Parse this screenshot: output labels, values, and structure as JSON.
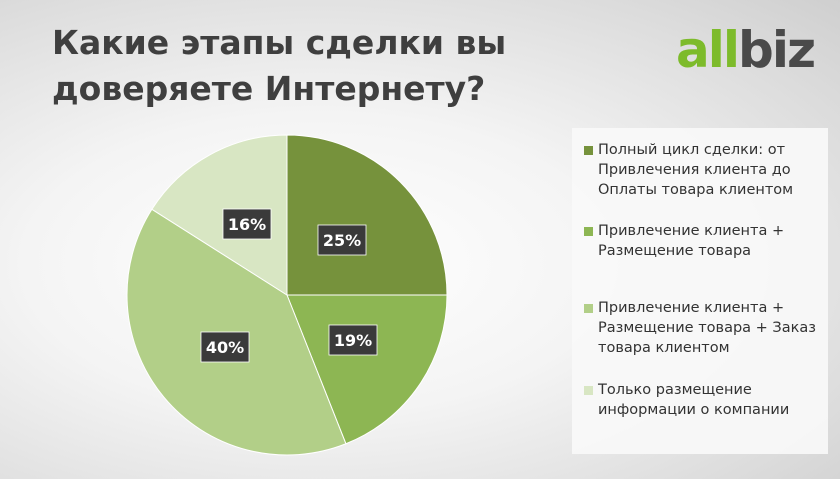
{
  "title": "Какие этапы сделки вы доверяете Интернету?",
  "logo": {
    "part1": "all",
    "part2": "biz"
  },
  "colors": {
    "logo_green": "#7dbb2b",
    "logo_dark": "#4a4a4a"
  },
  "chart_data": {
    "type": "pie",
    "title": "Какие этапы сделки вы доверяете Интернету?",
    "legend_position": "right",
    "slices": [
      {
        "label": "Полный цикл сделки: от Привлечения клиента до Оплаты товара клиентом",
        "value": 25,
        "display": "25%",
        "color": "#76923c"
      },
      {
        "label": "Привлечение клиента + Размещение товара",
        "value": 19,
        "display": "19%",
        "color": "#8db653"
      },
      {
        "label": "Привлечение клиента + Размещение товара + Заказ товара клиентом",
        "value": 40,
        "display": "40%",
        "color": "#b2cf88"
      },
      {
        "label": "Только размещение информации о компании",
        "value": 16,
        "display": "16%",
        "color": "#d8e6c3"
      }
    ]
  }
}
